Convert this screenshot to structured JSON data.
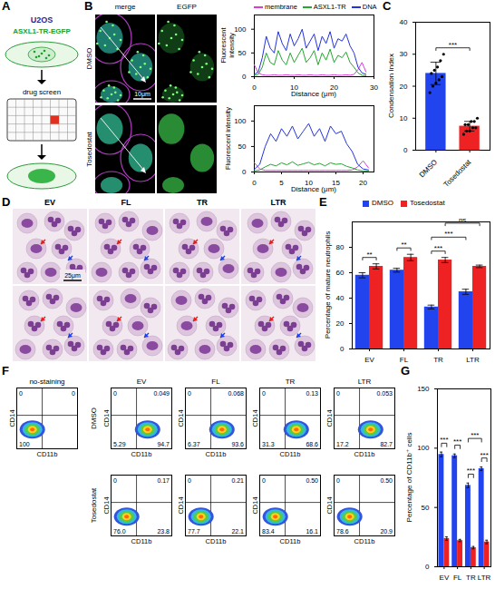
{
  "panel_letters": [
    "A",
    "B",
    "C",
    "D",
    "E",
    "F",
    "G"
  ],
  "schematic": {
    "cell_line": "U2OS",
    "construct": "ASXL1-TR-EGFP",
    "step": "drug screen"
  },
  "microscopy": {
    "columns": [
      "merge",
      "EGFP"
    ],
    "rows": [
      "DMSO",
      "Tosedostat"
    ],
    "scale_bar": "10μm"
  },
  "cytology": {
    "columns": [
      "EV",
      "FL",
      "TR",
      "LTR"
    ],
    "scale_bar": "25μm"
  },
  "flow_cytometry": {
    "x_label": "CD11b",
    "y_label": "CD14",
    "control": {
      "title": "no-staining",
      "quadrants": {
        "UL": 0,
        "UR": 0,
        "LL": 100
      }
    },
    "columns": [
      "EV",
      "FL",
      "TR",
      "LTR"
    ],
    "rows": [
      {
        "name": "DMSO",
        "plots": [
          {
            "UL": 0,
            "UR": 0.049,
            "LL": 5.29,
            "LR": 94.7
          },
          {
            "UL": 0,
            "UR": 0.068,
            "LL": 6.37,
            "LR": 93.6
          },
          {
            "UL": 0,
            "UR": 0.13,
            "LL": 31.3,
            "LR": 68.6
          },
          {
            "UL": 0,
            "UR": 0.053,
            "LL": 17.2,
            "LR": 82.7
          }
        ]
      },
      {
        "name": "Tosedostat",
        "plots": [
          {
            "UL": 0,
            "UR": 0.17,
            "LL": {
              "value": 76,
              "label": "76.0"
            },
            "LR": 23.8
          },
          {
            "UL": 0,
            "UR": 0.21,
            "LL": 77.7,
            "LR": 22.1
          },
          {
            "UL": 0,
            "UR": {
              "value": 0.5,
              "label": "0.50"
            },
            "LL": 83.4,
            "LR": 16.1
          },
          {
            "UL": 0,
            "UR": {
              "value": 0.5,
              "label": "0.50"
            },
            "LL": 78.6,
            "LR": 20.9
          }
        ]
      }
    ]
  },
  "chart_data": [
    {
      "type": "line",
      "xlabel": "Distance (μm)",
      "ylabel": "Fluorescent intensity",
      "x": [
        0,
        1,
        2,
        3,
        4,
        5,
        6,
        7,
        8,
        9,
        10,
        11,
        12,
        13,
        14,
        15,
        16,
        17,
        18,
        19,
        20,
        21,
        22,
        23,
        24,
        25,
        26,
        27,
        28
      ],
      "series": [
        {
          "name": "membrane",
          "color": "#d63cd6",
          "values": [
            25,
            8,
            4,
            3,
            3,
            4,
            3,
            3,
            4,
            3,
            3,
            4,
            3,
            3,
            4,
            3,
            3,
            4,
            3,
            3,
            4,
            3,
            3,
            4,
            3,
            5,
            15,
            30,
            10
          ]
        },
        {
          "name": "ASXL1-TR",
          "color": "#22a82e",
          "values": [
            3,
            5,
            20,
            50,
            30,
            25,
            55,
            35,
            25,
            50,
            30,
            45,
            60,
            30,
            40,
            55,
            25,
            50,
            35,
            58,
            30,
            45,
            40,
            52,
            30,
            20,
            8,
            3,
            2
          ]
        },
        {
          "name": "DNA",
          "color": "#2233dd",
          "values": [
            5,
            10,
            40,
            85,
            60,
            50,
            95,
            70,
            55,
            90,
            65,
            80,
            100,
            60,
            75,
            90,
            55,
            85,
            70,
            95,
            60,
            80,
            75,
            90,
            65,
            50,
            20,
            8,
            5
          ]
        }
      ],
      "xlim": [
        0,
        30
      ],
      "xticks": [
        0,
        10,
        20,
        30
      ],
      "ylim": [
        0,
        130
      ],
      "yticks": [
        0,
        50,
        100
      ],
      "legend": "top"
    },
    {
      "type": "line",
      "xlabel": "Distance (μm)",
      "ylabel": "Fluorescent intensity",
      "x": [
        0,
        1,
        2,
        3,
        4,
        5,
        6,
        7,
        8,
        9,
        10,
        11,
        12,
        13,
        14,
        15,
        16,
        17,
        18,
        19,
        20,
        21
      ],
      "series": [
        {
          "name": "membrane",
          "color": "#d63cd6",
          "values": [
            18,
            6,
            3,
            3,
            3,
            3,
            3,
            3,
            3,
            3,
            3,
            3,
            3,
            3,
            3,
            3,
            3,
            3,
            4,
            10,
            22,
            8
          ]
        },
        {
          "name": "ASXL1-TR",
          "color": "#22a82e",
          "values": [
            2,
            4,
            10,
            15,
            12,
            18,
            14,
            20,
            13,
            16,
            19,
            14,
            17,
            12,
            18,
            15,
            16,
            11,
            8,
            4,
            2,
            2
          ]
        },
        {
          "name": "DNA",
          "color": "#2233dd",
          "values": [
            5,
            15,
            50,
            75,
            60,
            85,
            70,
            90,
            65,
            80,
            95,
            70,
            85,
            60,
            90,
            75,
            80,
            55,
            40,
            15,
            6,
            4
          ]
        }
      ],
      "xlim": [
        0,
        22
      ],
      "xticks": [
        0,
        5,
        10,
        15,
        20
      ],
      "ylim": [
        0,
        130
      ],
      "yticks": [
        0,
        50,
        100
      ]
    },
    {
      "type": "bar",
      "ylabel": "Condensation Index",
      "categories": [
        "DMSO",
        "Tosedostat"
      ],
      "values": [
        24,
        7.5
      ],
      "errors": [
        3.5,
        1.5
      ],
      "points": [
        [
          18,
          20,
          21,
          22,
          23,
          24,
          25,
          26,
          28,
          30
        ],
        [
          5,
          6,
          6,
          7,
          7,
          8,
          8,
          9,
          9,
          10
        ]
      ],
      "colors": [
        "#2244ee",
        "#ee2222"
      ],
      "ylim": [
        0,
        40
      ],
      "yticks": [
        0,
        10,
        20,
        30,
        40
      ],
      "annotations": [
        {
          "text": "***",
          "from": "DMSO",
          "to": "Tosedostat"
        }
      ]
    },
    {
      "type": "bar",
      "ylabel": "Percentage of mature neutrophils",
      "categories": [
        "EV",
        "FL",
        "TR",
        "LTR"
      ],
      "series": [
        {
          "name": "DMSO",
          "color": "#2244ee",
          "values": [
            58,
            62,
            33,
            45
          ],
          "errors": [
            2,
            1.5,
            1.5,
            2
          ]
        },
        {
          "name": "Tosedostat",
          "color": "#ee2222",
          "values": [
            65,
            72,
            70,
            65
          ],
          "errors": [
            2,
            2.5,
            2,
            1
          ]
        }
      ],
      "ylim": [
        0,
        100
      ],
      "yticks": [
        0,
        20,
        40,
        60,
        80
      ],
      "legend": "top",
      "annotations": [
        {
          "text": "**",
          "from": [
            "EV",
            "DMSO"
          ],
          "to": [
            "EV",
            "Tosedostat"
          ]
        },
        {
          "text": "**",
          "from": [
            "FL",
            "DMSO"
          ],
          "to": [
            "FL",
            "Tosedostat"
          ]
        },
        {
          "text": "***",
          "from": [
            "TR",
            "DMSO"
          ],
          "to": [
            "TR",
            "Tosedostat"
          ]
        },
        {
          "text": "***",
          "from": [
            "TR",
            "DMSO"
          ],
          "to": [
            "LTR",
            "DMSO"
          ]
        },
        {
          "text": "ns",
          "from": [
            "TR",
            "Tosedostat"
          ],
          "to": [
            "LTR",
            "Tosedostat"
          ]
        }
      ]
    },
    {
      "type": "bar",
      "ylabel": "Percentage of CD11b⁺ cells",
      "categories": [
        "EV",
        "FL",
        "TR",
        "LTR"
      ],
      "series": [
        {
          "name": "DMSO",
          "color": "#2244ee",
          "values": [
            94.7,
            93.6,
            68.6,
            82.7
          ],
          "errors": [
            2,
            1.5,
            2,
            1.5
          ]
        },
        {
          "name": "Tosedostat",
          "color": "#ee2222",
          "values": [
            23.8,
            22.1,
            16.1,
            20.9
          ],
          "errors": [
            1.5,
            1,
            1,
            1.5
          ]
        }
      ],
      "ylim": [
        0,
        150
      ],
      "yticks": [
        0,
        50,
        100,
        150
      ],
      "annotations": [
        {
          "text": "***",
          "from": [
            "EV",
            "DMSO"
          ],
          "to": [
            "EV",
            "Tosedostat"
          ]
        },
        {
          "text": "***",
          "from": [
            "FL",
            "DMSO"
          ],
          "to": [
            "FL",
            "Tosedostat"
          ]
        },
        {
          "text": "***",
          "from": [
            "TR",
            "DMSO"
          ],
          "to": [
            "TR",
            "Tosedostat"
          ]
        },
        {
          "text": "***",
          "from": [
            "LTR",
            "DMSO"
          ],
          "to": [
            "LTR",
            "Tosedostat"
          ]
        },
        {
          "text": "***",
          "from": [
            "TR",
            "DMSO"
          ],
          "to": [
            "LTR",
            "DMSO"
          ]
        }
      ]
    }
  ]
}
